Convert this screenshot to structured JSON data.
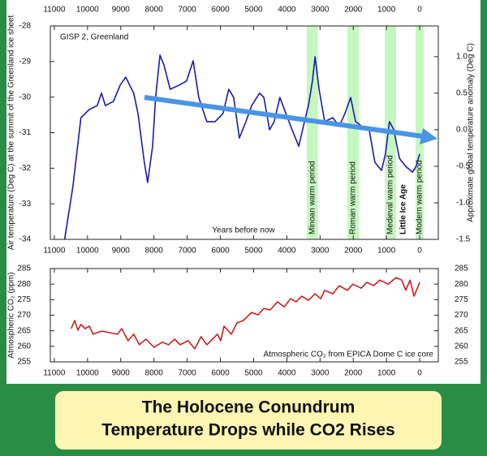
{
  "chart_data": [
    {
      "type": "line",
      "title": "GISP 2, Greenland",
      "xlabel": "Years before now",
      "ylabel": "Air temperature (Deg C) at the summit of the Greenland ice sheet",
      "y2label": "Approximate global temperature anomaly (Deg C)",
      "color": "#1a1ab0",
      "x": [
        10690,
        10440,
        10200,
        9950,
        9710,
        9580,
        9460,
        9220,
        9020,
        8850,
        8610,
        8480,
        8290,
        8190,
        8040,
        7950,
        7820,
        7700,
        7510,
        7260,
        7020,
        6820,
        6650,
        6410,
        6160,
        5920,
        5750,
        5600,
        5430,
        5230,
        5060,
        4820,
        4690,
        4520,
        4380,
        4210,
        4030,
        3840,
        3640,
        3470,
        3350,
        3230,
        3150,
        3030,
        2860,
        2620,
        2420,
        2250,
        2080,
        1930,
        1760,
        1520,
        1350,
        1150,
        1030,
        910,
        780,
        610,
        420,
        220,
        120,
        0
      ],
      "values": [
        -34.0,
        -32.52,
        -30.58,
        -30.35,
        -30.24,
        -29.89,
        -30.24,
        -30.12,
        -29.67,
        -29.44,
        -29.89,
        -30.46,
        -31.83,
        -32.4,
        -31.38,
        -30.01,
        -28.82,
        -29.1,
        -29.78,
        -29.67,
        -29.55,
        -28.98,
        -30.01,
        -30.69,
        -30.69,
        -30.46,
        -29.78,
        -30.01,
        -31.15,
        -30.69,
        -30.24,
        -29.89,
        -30.01,
        -30.92,
        -30.69,
        -30.01,
        -30.46,
        -30.92,
        -31.38,
        -30.69,
        -30.24,
        -29.55,
        -28.87,
        -29.78,
        -30.69,
        -30.58,
        -30.81,
        -30.46,
        -30.01,
        -30.69,
        -30.81,
        -30.92,
        -31.83,
        -32.06,
        -31.6,
        -30.69,
        -30.92,
        -31.72,
        -31.95,
        -32.11,
        -31.97,
        -31.6
      ],
      "xlim": [
        11120,
        -560
      ],
      "xticks": [
        11000,
        10000,
        9000,
        8000,
        7000,
        6000,
        5000,
        4000,
        3000,
        2000,
        1000,
        0
      ],
      "ylim": [
        -34,
        -28
      ],
      "yticks": [
        -34,
        -33,
        -32,
        -31,
        -30,
        -29,
        -28
      ],
      "y2lim": [
        -1.5,
        1.42
      ],
      "y2ticks": [
        {
          "value": -1.5,
          "label": "-1.5"
        },
        {
          "value": -1.0,
          "label": "-1.0"
        },
        -0.5,
        {
          "value": 0.0,
          "label": "0.0"
        },
        0.5,
        {
          "value": 1.0,
          "label": "1.0"
        }
      ],
      "period_color": "#c6f7c0",
      "periods": [
        {
          "name": "Minoan warm period",
          "start": 3400,
          "end": 3060
        },
        {
          "name": "Roman warm period",
          "start": 2180,
          "end": 1830
        },
        {
          "name": "Medieval warm period",
          "start": 1050,
          "end": 710
        },
        {
          "name": "Modern warm period",
          "start": 120,
          "end": -120
        }
      ],
      "annotations": [
        {
          "text": "Little Ice Age",
          "x": 490,
          "color": "#2f2fd0"
        }
      ]
    },
    {
      "type": "line",
      "ylabel": "Atmospheric CO₂ (ppm)",
      "note": "Atmospheric CO₂ from EPICA Dome C ice core",
      "color": "#cc1f1f",
      "x": [
        10490,
        10390,
        10290,
        10200,
        10070,
        9950,
        9830,
        9580,
        9340,
        9100,
        8970,
        8780,
        8610,
        8440,
        8240,
        8000,
        7750,
        7560,
        7380,
        7210,
        6970,
        6770,
        6580,
        6410,
        6240,
        6090,
        5990,
        5890,
        5670,
        5500,
        5310,
        5060,
        4870,
        4690,
        4500,
        4280,
        4080,
        3890,
        3720,
        3550,
        3350,
        3150,
        2980,
        2860,
        2620,
        2420,
        2180,
        2010,
        1760,
        1590,
        1390,
        1200,
        950,
        710,
        540,
        420,
        290,
        170,
        70,
        0
      ],
      "values": [
        265.7,
        268.3,
        265.2,
        267.0,
        265.7,
        266.5,
        263.9,
        264.9,
        264.4,
        263.9,
        265.7,
        261.8,
        263.9,
        260.5,
        262.3,
        259.7,
        261.3,
        260.5,
        262.3,
        260.5,
        261.8,
        259.2,
        263.1,
        260.5,
        262.3,
        263.9,
        261.8,
        266.5,
        263.9,
        267.5,
        268.3,
        270.9,
        270.1,
        272.2,
        271.7,
        274.3,
        272.7,
        275.3,
        274.3,
        276.1,
        274.8,
        276.9,
        275.3,
        278.0,
        276.9,
        279.5,
        278.0,
        280.0,
        278.7,
        280.6,
        279.5,
        281.3,
        280.0,
        282.1,
        281.3,
        278.0,
        281.3,
        276.1,
        278.7,
        280.6
      ],
      "xlim": [
        11120,
        -560
      ],
      "xticks": [
        11000,
        10000,
        9000,
        8000,
        7000,
        6000,
        5000,
        4000,
        3000,
        2000,
        1000,
        0
      ],
      "ylim": [
        255,
        285
      ],
      "yticks": [
        255,
        260,
        265,
        270,
        275,
        280,
        285
      ]
    }
  ],
  "caption": [
    "The Holocene Conundrum",
    "Temperature Drops while CO2 Rises"
  ]
}
